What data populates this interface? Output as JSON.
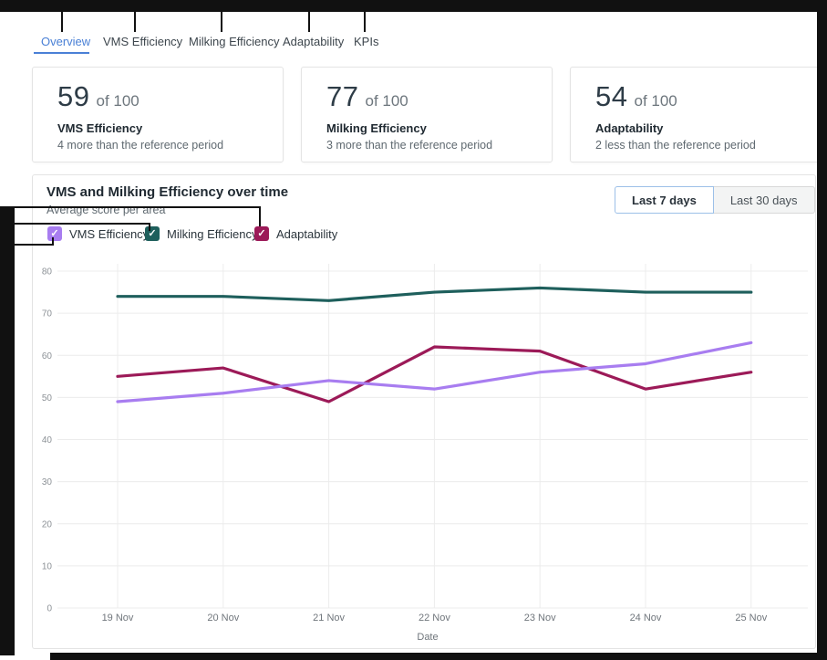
{
  "tabs": [
    {
      "label": "Overview",
      "active": true
    },
    {
      "label": "VMS Efficiency",
      "active": false
    },
    {
      "label": "Milking Efficiency",
      "active": false
    },
    {
      "label": "Adaptability",
      "active": false
    },
    {
      "label": "KPIs",
      "active": false
    }
  ],
  "stat_cards": [
    {
      "value": "59",
      "of_label": "of 100",
      "title": "VMS Efficiency",
      "subtitle": "4 more than the reference period"
    },
    {
      "value": "77",
      "of_label": "of 100",
      "title": "Milking Efficiency",
      "subtitle": "3 more than the reference period"
    },
    {
      "value": "54",
      "of_label": "of 100",
      "title": "Adaptability",
      "subtitle": "2 less than the reference period"
    }
  ],
  "chart_section": {
    "title": "VMS and Milking Efficiency over time",
    "subtitle": "Average score per area",
    "range_buttons": [
      {
        "label": "Last 7 days",
        "active": true
      },
      {
        "label": "Last 30 days",
        "active": false
      }
    ],
    "legend": [
      {
        "label": "VMS Efficiency",
        "color": "#a87df0",
        "checked": true
      },
      {
        "label": "Milking Efficiency",
        "color": "#1e5f5c",
        "checked": true
      },
      {
        "label": "Adaptability",
        "color": "#9c1a58",
        "checked": true
      }
    ]
  },
  "chart_data": {
    "type": "line",
    "title": "VMS and Milking Efficiency over time",
    "x": [
      "19 Nov",
      "20 Nov",
      "21 Nov",
      "22 Nov",
      "23 Nov",
      "24 Nov",
      "25 Nov"
    ],
    "xlabel": "Date",
    "ylabel": "",
    "ylim": [
      0,
      80
    ],
    "ytick_step": 10,
    "grid": true,
    "legend_position": "top-left",
    "series": [
      {
        "name": "VMS Efficiency",
        "color": "#a87df0",
        "values": [
          49,
          51,
          54,
          52,
          56,
          58,
          63
        ]
      },
      {
        "name": "Milking Efficiency",
        "color": "#1e5f5c",
        "values": [
          74,
          74,
          73,
          75,
          76,
          75,
          75
        ]
      },
      {
        "name": "Adaptability",
        "color": "#9c1a58",
        "values": [
          55,
          57,
          49,
          62,
          61,
          52,
          56
        ]
      }
    ]
  },
  "colors": {
    "accent_blue": "#4a80d6",
    "grid": "#ececec",
    "axis_text": "#8c9196",
    "annotation": "#111111"
  }
}
